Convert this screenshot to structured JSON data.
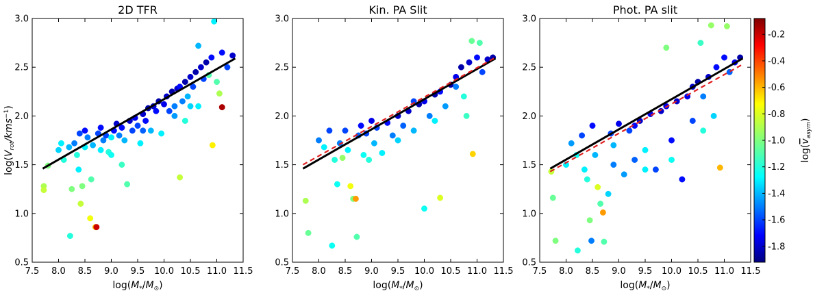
{
  "chart_data": [
    {
      "type": "scatter",
      "title": "2D TFR",
      "xlabel": "log(M*/M⊙)",
      "ylabel": "log(Vrot/kms−1)",
      "xlim": [
        7.5,
        11.5
      ],
      "ylim": [
        0.5,
        3.0
      ],
      "x_ticks": [
        "7.5",
        "8.0",
        "8.5",
        "9.0",
        "9.5",
        "10.0",
        "10.5",
        "11.0",
        "11.5"
      ],
      "y_ticks": [
        "0.5",
        "1.0",
        "1.5",
        "2.0",
        "2.5",
        "3.0"
      ],
      "fit_lines": [
        {
          "style": "solid",
          "color": "#000000",
          "x": [
            7.7,
            11.35
          ],
          "y": [
            1.46,
            2.59
          ]
        }
      ],
      "points": [
        [
          7.72,
          1.28,
          -0.9
        ],
        [
          7.72,
          1.24,
          -0.85
        ],
        [
          7.8,
          1.49,
          -1.0
        ],
        [
          8.0,
          1.65,
          -1.35
        ],
        [
          8.05,
          1.72,
          -1.3
        ],
        [
          8.1,
          1.55,
          -1.2
        ],
        [
          8.2,
          1.68,
          -1.4
        ],
        [
          8.25,
          1.25,
          -1.0
        ],
        [
          8.22,
          0.77,
          -1.2
        ],
        [
          8.3,
          1.72,
          -1.5
        ],
        [
          8.35,
          1.6,
          -1.2
        ],
        [
          8.38,
          1.45,
          -1.3
        ],
        [
          8.4,
          1.82,
          -1.6
        ],
        [
          8.42,
          1.1,
          -0.85
        ],
        [
          8.45,
          1.28,
          -1.0
        ],
        [
          8.5,
          1.85,
          -1.7
        ],
        [
          8.5,
          1.68,
          -1.3
        ],
        [
          8.55,
          1.78,
          -1.5
        ],
        [
          8.6,
          0.95,
          -0.75
        ],
        [
          8.62,
          1.35,
          -1.1
        ],
        [
          8.65,
          1.7,
          -1.4
        ],
        [
          8.7,
          0.86,
          -0.6
        ],
        [
          8.72,
          0.86,
          -0.2
        ],
        [
          8.75,
          1.82,
          -1.6
        ],
        [
          8.8,
          1.88,
          -1.7
        ],
        [
          8.85,
          1.75,
          -1.5
        ],
        [
          8.9,
          1.8,
          -1.6
        ],
        [
          8.95,
          1.63,
          -1.2
        ],
        [
          9.0,
          1.78,
          -1.3
        ],
        [
          9.05,
          1.85,
          -1.7
        ],
        [
          9.1,
          1.92,
          -1.8
        ],
        [
          9.15,
          1.8,
          -1.5
        ],
        [
          9.2,
          1.88,
          -1.7
        ],
        [
          9.25,
          1.75,
          -1.4
        ],
        [
          9.3,
          1.3,
          -1.1
        ],
        [
          9.35,
          1.95,
          -1.8
        ],
        [
          9.4,
          1.85,
          -1.6
        ],
        [
          9.45,
          1.98,
          -1.75
        ],
        [
          9.5,
          1.9,
          -1.6
        ],
        [
          9.55,
          1.72,
          -1.3
        ],
        [
          9.6,
          2.02,
          -1.8
        ],
        [
          9.65,
          1.95,
          -1.7
        ],
        [
          9.7,
          2.08,
          -1.85
        ],
        [
          9.75,
          1.85,
          -1.4
        ],
        [
          9.8,
          2.1,
          -1.8
        ],
        [
          9.85,
          2.05,
          -1.7
        ],
        [
          9.9,
          2.15,
          -1.85
        ],
        [
          9.95,
          1.82,
          -1.3
        ],
        [
          10.0,
          2.12,
          -1.75
        ],
        [
          10.05,
          2.2,
          -1.8
        ],
        [
          10.1,
          2.05,
          -1.6
        ],
        [
          10.15,
          2.25,
          -1.85
        ],
        [
          10.2,
          2.1,
          -1.5
        ],
        [
          10.25,
          2.28,
          -1.8
        ],
        [
          10.3,
          1.37,
          -0.85
        ],
        [
          10.3,
          2.3,
          -1.7
        ],
        [
          10.35,
          2.15,
          -1.5
        ],
        [
          10.4,
          2.35,
          -1.85
        ],
        [
          10.45,
          2.2,
          -1.4
        ],
        [
          10.5,
          2.4,
          -1.8
        ],
        [
          10.55,
          2.3,
          -1.6
        ],
        [
          10.6,
          2.45,
          -1.85
        ],
        [
          10.65,
          2.72,
          -1.4
        ],
        [
          10.65,
          2.1,
          -1.3
        ],
        [
          10.7,
          2.5,
          -1.8
        ],
        [
          10.75,
          2.38,
          -1.6
        ],
        [
          10.8,
          2.55,
          -1.85
        ],
        [
          10.85,
          2.42,
          -1.1
        ],
        [
          10.9,
          2.6,
          -1.7
        ],
        [
          10.92,
          1.7,
          -0.7
        ],
        [
          10.95,
          2.97,
          -1.3
        ],
        [
          11.0,
          2.35,
          -1.1
        ],
        [
          11.05,
          2.23,
          -0.9
        ],
        [
          11.1,
          2.09,
          -0.15
        ],
        [
          11.1,
          2.65,
          -1.7
        ],
        [
          11.2,
          2.5,
          -1.6
        ],
        [
          11.3,
          2.62,
          -1.8
        ],
        [
          9.0,
          1.6,
          -1.25
        ],
        [
          9.6,
          1.85,
          -1.55
        ],
        [
          10.2,
          2.0,
          -1.45
        ],
        [
          10.4,
          1.95,
          -1.2
        ],
        [
          10.5,
          2.1,
          -1.35
        ],
        [
          9.2,
          1.5,
          -1.15
        ],
        [
          8.8,
          1.65,
          -1.3
        ]
      ]
    },
    {
      "type": "scatter",
      "title": "Kin. PA Slit",
      "xlabel": "log(M*/M⊙)",
      "ylabel": "",
      "xlim": [
        7.5,
        11.5
      ],
      "ylim": [
        0.5,
        3.0
      ],
      "x_ticks": [
        "7.5",
        "8.0",
        "8.5",
        "9.0",
        "9.5",
        "10.0",
        "10.5",
        "11.0",
        "11.5"
      ],
      "y_ticks": [
        "0.5",
        "1.0",
        "1.5",
        "2.0",
        "2.5",
        "3.0"
      ],
      "fit_lines": [
        {
          "style": "solid",
          "color": "#000000",
          "x": [
            7.7,
            11.35
          ],
          "y": [
            1.46,
            2.59
          ]
        },
        {
          "style": "dashed",
          "color": "#e02020",
          "x": [
            7.7,
            11.35
          ],
          "y": [
            1.5,
            2.6
          ]
        }
      ],
      "points": [
        [
          7.75,
          1.13,
          -0.9
        ],
        [
          7.8,
          0.8,
          -1.05
        ],
        [
          8.0,
          1.75,
          -1.5
        ],
        [
          8.1,
          1.68,
          -1.3
        ],
        [
          8.2,
          1.85,
          -1.6
        ],
        [
          8.25,
          0.67,
          -1.25
        ],
        [
          8.3,
          1.55,
          -1.2
        ],
        [
          8.35,
          1.3,
          -1.25
        ],
        [
          8.4,
          1.72,
          -1.5
        ],
        [
          8.45,
          1.57,
          -0.95
        ],
        [
          8.5,
          1.85,
          -1.6
        ],
        [
          8.55,
          1.65,
          -1.3
        ],
        [
          8.6,
          1.28,
          -0.75
        ],
        [
          8.65,
          1.15,
          -1.0
        ],
        [
          8.7,
          1.15,
          -0.55
        ],
        [
          8.72,
          0.76,
          -1.1
        ],
        [
          8.75,
          1.8,
          -1.55
        ],
        [
          8.8,
          1.9,
          -1.7
        ],
        [
          8.85,
          1.6,
          -1.25
        ],
        [
          8.9,
          1.82,
          -1.6
        ],
        [
          9.0,
          1.95,
          -1.75
        ],
        [
          9.05,
          1.72,
          -1.4
        ],
        [
          9.1,
          1.88,
          -1.6
        ],
        [
          9.2,
          1.62,
          -1.3
        ],
        [
          9.3,
          1.93,
          -1.7
        ],
        [
          9.4,
          1.8,
          -1.5
        ],
        [
          9.5,
          2.0,
          -1.8
        ],
        [
          9.6,
          1.9,
          -1.55
        ],
        [
          9.7,
          2.05,
          -1.8
        ],
        [
          9.8,
          1.85,
          -1.4
        ],
        [
          9.9,
          2.12,
          -1.85
        ],
        [
          10.0,
          1.05,
          -1.25
        ],
        [
          10.0,
          2.15,
          -1.75
        ],
        [
          10.1,
          2.0,
          -1.5
        ],
        [
          10.2,
          2.22,
          -1.85
        ],
        [
          10.3,
          1.16,
          -0.8
        ],
        [
          10.3,
          2.25,
          -1.7
        ],
        [
          10.4,
          2.1,
          -1.45
        ],
        [
          10.5,
          2.32,
          -1.85
        ],
        [
          10.6,
          2.4,
          -1.75
        ],
        [
          10.7,
          2.5,
          -1.85
        ],
        [
          10.75,
          2.2,
          -1.2
        ],
        [
          10.8,
          2.0,
          -1.15
        ],
        [
          10.85,
          2.55,
          -1.8
        ],
        [
          10.9,
          2.77,
          -1.05
        ],
        [
          10.92,
          1.61,
          -0.65
        ],
        [
          11.0,
          2.6,
          -1.7
        ],
        [
          11.05,
          2.75,
          -1.1
        ],
        [
          11.1,
          2.45,
          -1.6
        ],
        [
          11.2,
          2.58,
          -1.8
        ],
        [
          11.3,
          2.6,
          -1.85
        ],
        [
          9.5,
          1.75,
          -1.35
        ],
        [
          10.2,
          1.95,
          -1.3
        ],
        [
          9.8,
          2.15,
          -1.6
        ],
        [
          10.6,
          2.3,
          -1.5
        ],
        [
          8.95,
          1.55,
          -1.2
        ]
      ]
    },
    {
      "type": "scatter",
      "title": "Phot. PA slit",
      "xlabel": "log(M*/M⊙)",
      "ylabel": "",
      "xlim": [
        7.5,
        11.5
      ],
      "ylim": [
        0.5,
        3.0
      ],
      "x_ticks": [
        "7.5",
        "8.0",
        "8.5",
        "9.0",
        "9.5",
        "10.0",
        "10.5",
        "11.0",
        "11.5"
      ],
      "y_ticks": [
        "0.5",
        "1.0",
        "1.5",
        "2.0",
        "2.5",
        "3.0"
      ],
      "fit_lines": [
        {
          "style": "solid",
          "color": "#000000",
          "x": [
            7.7,
            11.35
          ],
          "y": [
            1.46,
            2.59
          ]
        },
        {
          "style": "dashed",
          "color": "#e02020",
          "x": [
            7.7,
            11.35
          ],
          "y": [
            1.43,
            2.53
          ]
        }
      ],
      "points": [
        [
          7.72,
          1.43,
          -0.85
        ],
        [
          7.75,
          1.16,
          -1.05
        ],
        [
          7.8,
          0.72,
          -1.0
        ],
        [
          8.0,
          1.5,
          -1.3
        ],
        [
          8.1,
          1.72,
          -1.45
        ],
        [
          8.2,
          1.6,
          -1.25
        ],
        [
          8.22,
          0.62,
          -1.2
        ],
        [
          8.3,
          1.8,
          -1.6
        ],
        [
          8.35,
          1.45,
          -1.3
        ],
        [
          8.4,
          1.35,
          -1.2
        ],
        [
          8.45,
          0.93,
          -1.0
        ],
        [
          8.48,
          0.72,
          -1.5
        ],
        [
          8.5,
          1.9,
          -1.7
        ],
        [
          8.55,
          1.6,
          -1.4
        ],
        [
          8.6,
          1.27,
          -0.8
        ],
        [
          8.65,
          1.1,
          -1.1
        ],
        [
          8.7,
          1.01,
          -0.55
        ],
        [
          8.72,
          0.71,
          -1.1
        ],
        [
          8.8,
          1.2,
          -1.35
        ],
        [
          8.85,
          1.82,
          -1.6
        ],
        [
          8.9,
          1.5,
          -1.5
        ],
        [
          9.0,
          1.92,
          -1.75
        ],
        [
          9.1,
          1.4,
          -1.45
        ],
        [
          9.2,
          1.85,
          -1.6
        ],
        [
          9.3,
          1.55,
          -1.55
        ],
        [
          9.4,
          1.95,
          -1.8
        ],
        [
          9.5,
          1.65,
          -1.3
        ],
        [
          9.6,
          2.02,
          -1.75
        ],
        [
          9.7,
          1.45,
          -1.6
        ],
        [
          9.8,
          2.05,
          -1.8
        ],
        [
          9.9,
          2.7,
          -1.0
        ],
        [
          10.0,
          1.75,
          -1.7
        ],
        [
          10.1,
          2.15,
          -1.8
        ],
        [
          10.2,
          1.35,
          -1.7
        ],
        [
          10.3,
          2.2,
          -1.75
        ],
        [
          10.4,
          1.95,
          -1.6
        ],
        [
          10.5,
          2.35,
          -1.85
        ],
        [
          10.55,
          2.75,
          -1.15
        ],
        [
          10.6,
          2.2,
          -1.5
        ],
        [
          10.7,
          2.4,
          -1.8
        ],
        [
          10.75,
          2.93,
          -0.95
        ],
        [
          10.8,
          2.0,
          -1.35
        ],
        [
          10.85,
          2.5,
          -1.7
        ],
        [
          10.92,
          1.47,
          -0.6
        ],
        [
          11.0,
          2.6,
          -1.7
        ],
        [
          11.05,
          2.92,
          -0.95
        ],
        [
          11.1,
          2.45,
          -1.55
        ],
        [
          11.2,
          2.55,
          -1.75
        ],
        [
          11.3,
          2.6,
          -1.85
        ],
        [
          9.3,
          1.9,
          -1.7
        ],
        [
          9.9,
          2.1,
          -1.75
        ],
        [
          10.4,
          2.3,
          -1.8
        ],
        [
          8.9,
          1.7,
          -1.4
        ],
        [
          10.0,
          1.55,
          -1.25
        ],
        [
          10.6,
          1.85,
          -1.2
        ],
        [
          9.5,
          1.45,
          -1.3
        ]
      ]
    }
  ],
  "colorbar": {
    "label": "log(vasym)",
    "ticks": [
      "-0.2",
      "-0.4",
      "-0.6",
      "-0.8",
      "-1.0",
      "-1.2",
      "-1.4",
      "-1.6",
      "-1.8"
    ],
    "range": [
      -1.92,
      -0.08
    ]
  }
}
